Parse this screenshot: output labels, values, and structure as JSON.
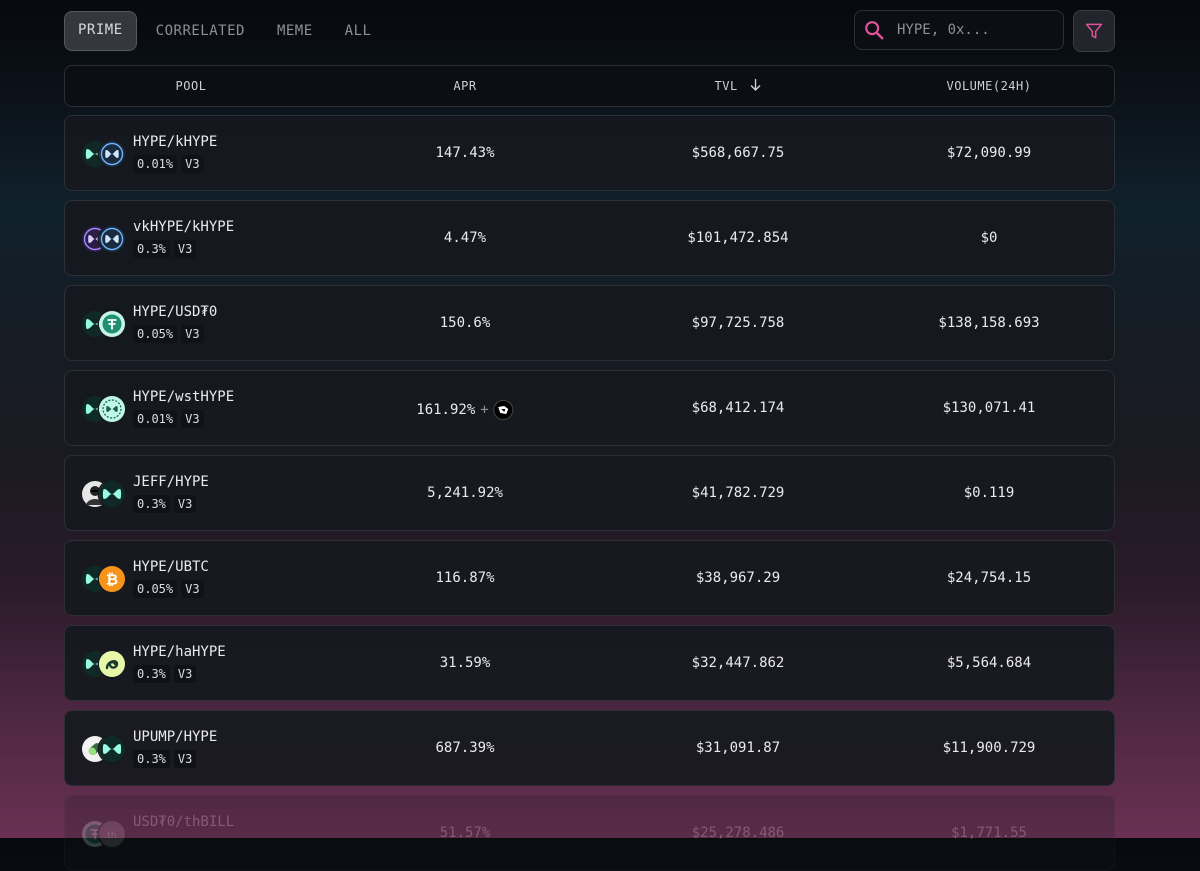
{
  "tabs": [
    "PRIME",
    "CORRELATED",
    "MEME",
    "ALL"
  ],
  "active_tab": "PRIME",
  "search": {
    "placeholder": "HYPE, 0x..."
  },
  "columns": {
    "pool": "POOL",
    "apr": "APR",
    "tvl": "TVL",
    "volume": "VOLUME(24H)"
  },
  "pools": [
    {
      "name": "HYPE/kHYPE",
      "fee": "0.01%",
      "version": "V3",
      "apr": "147.43%",
      "tvl": "$568,667.75",
      "volume": "$72,090.99",
      "icons": [
        "hype-token-icon",
        "khype-token-icon"
      ]
    },
    {
      "name": "vkHYPE/kHYPE",
      "fee": "0.3%",
      "version": "V3",
      "apr": "4.47%",
      "tvl": "$101,472.854",
      "volume": "$0",
      "icons": [
        "vkhype-token-icon",
        "khype-token-icon"
      ]
    },
    {
      "name": "HYPE/USD₮0",
      "fee": "0.05%",
      "version": "V3",
      "apr": "150.6%",
      "tvl": "$97,725.758",
      "volume": "$138,158.693",
      "icons": [
        "hype-token-icon",
        "usdt0-token-icon"
      ]
    },
    {
      "name": "HYPE/wstHYPE",
      "fee": "0.01%",
      "version": "V3",
      "apr": "161.92%",
      "apr_extra": "+",
      "tvl": "$68,412.174",
      "volume": "$130,071.41",
      "icons": [
        "hype-token-icon",
        "wsthype-token-icon"
      ]
    },
    {
      "name": "JEFF/HYPE",
      "fee": "0.3%",
      "version": "V3",
      "apr": "5,241.92%",
      "tvl": "$41,782.729",
      "volume": "$0.119",
      "icons": [
        "jeff-token-icon",
        "hype-token-icon"
      ]
    },
    {
      "name": "HYPE/UBTC",
      "fee": "0.05%",
      "version": "V3",
      "apr": "116.87%",
      "tvl": "$38,967.29",
      "volume": "$24,754.15",
      "icons": [
        "hype-token-icon",
        "ubtc-token-icon"
      ]
    },
    {
      "name": "HYPE/haHYPE",
      "fee": "0.3%",
      "version": "V3",
      "apr": "31.59%",
      "tvl": "$32,447.862",
      "volume": "$5,564.684",
      "icons": [
        "hype-token-icon",
        "hahype-token-icon"
      ]
    },
    {
      "name": "UPUMP/HYPE",
      "fee": "0.3%",
      "version": "V3",
      "apr": "687.39%",
      "tvl": "$31,091.87",
      "volume": "$11,900.729",
      "icons": [
        "upump-token-icon",
        "hype-token-icon"
      ]
    },
    {
      "name": "USD₮0/thBILL",
      "fee": "",
      "version": "",
      "apr": "51.57%",
      "tvl": "$25,278.486",
      "volume": "$1,771.55",
      "icons": [
        "usdt0-token-icon",
        "thbill-token-icon"
      ]
    }
  ],
  "colors": {
    "accent": "#e0529b",
    "hype": "#97fce4",
    "hype_dark": "#0f2a26",
    "ubtc": "#f7931a"
  }
}
